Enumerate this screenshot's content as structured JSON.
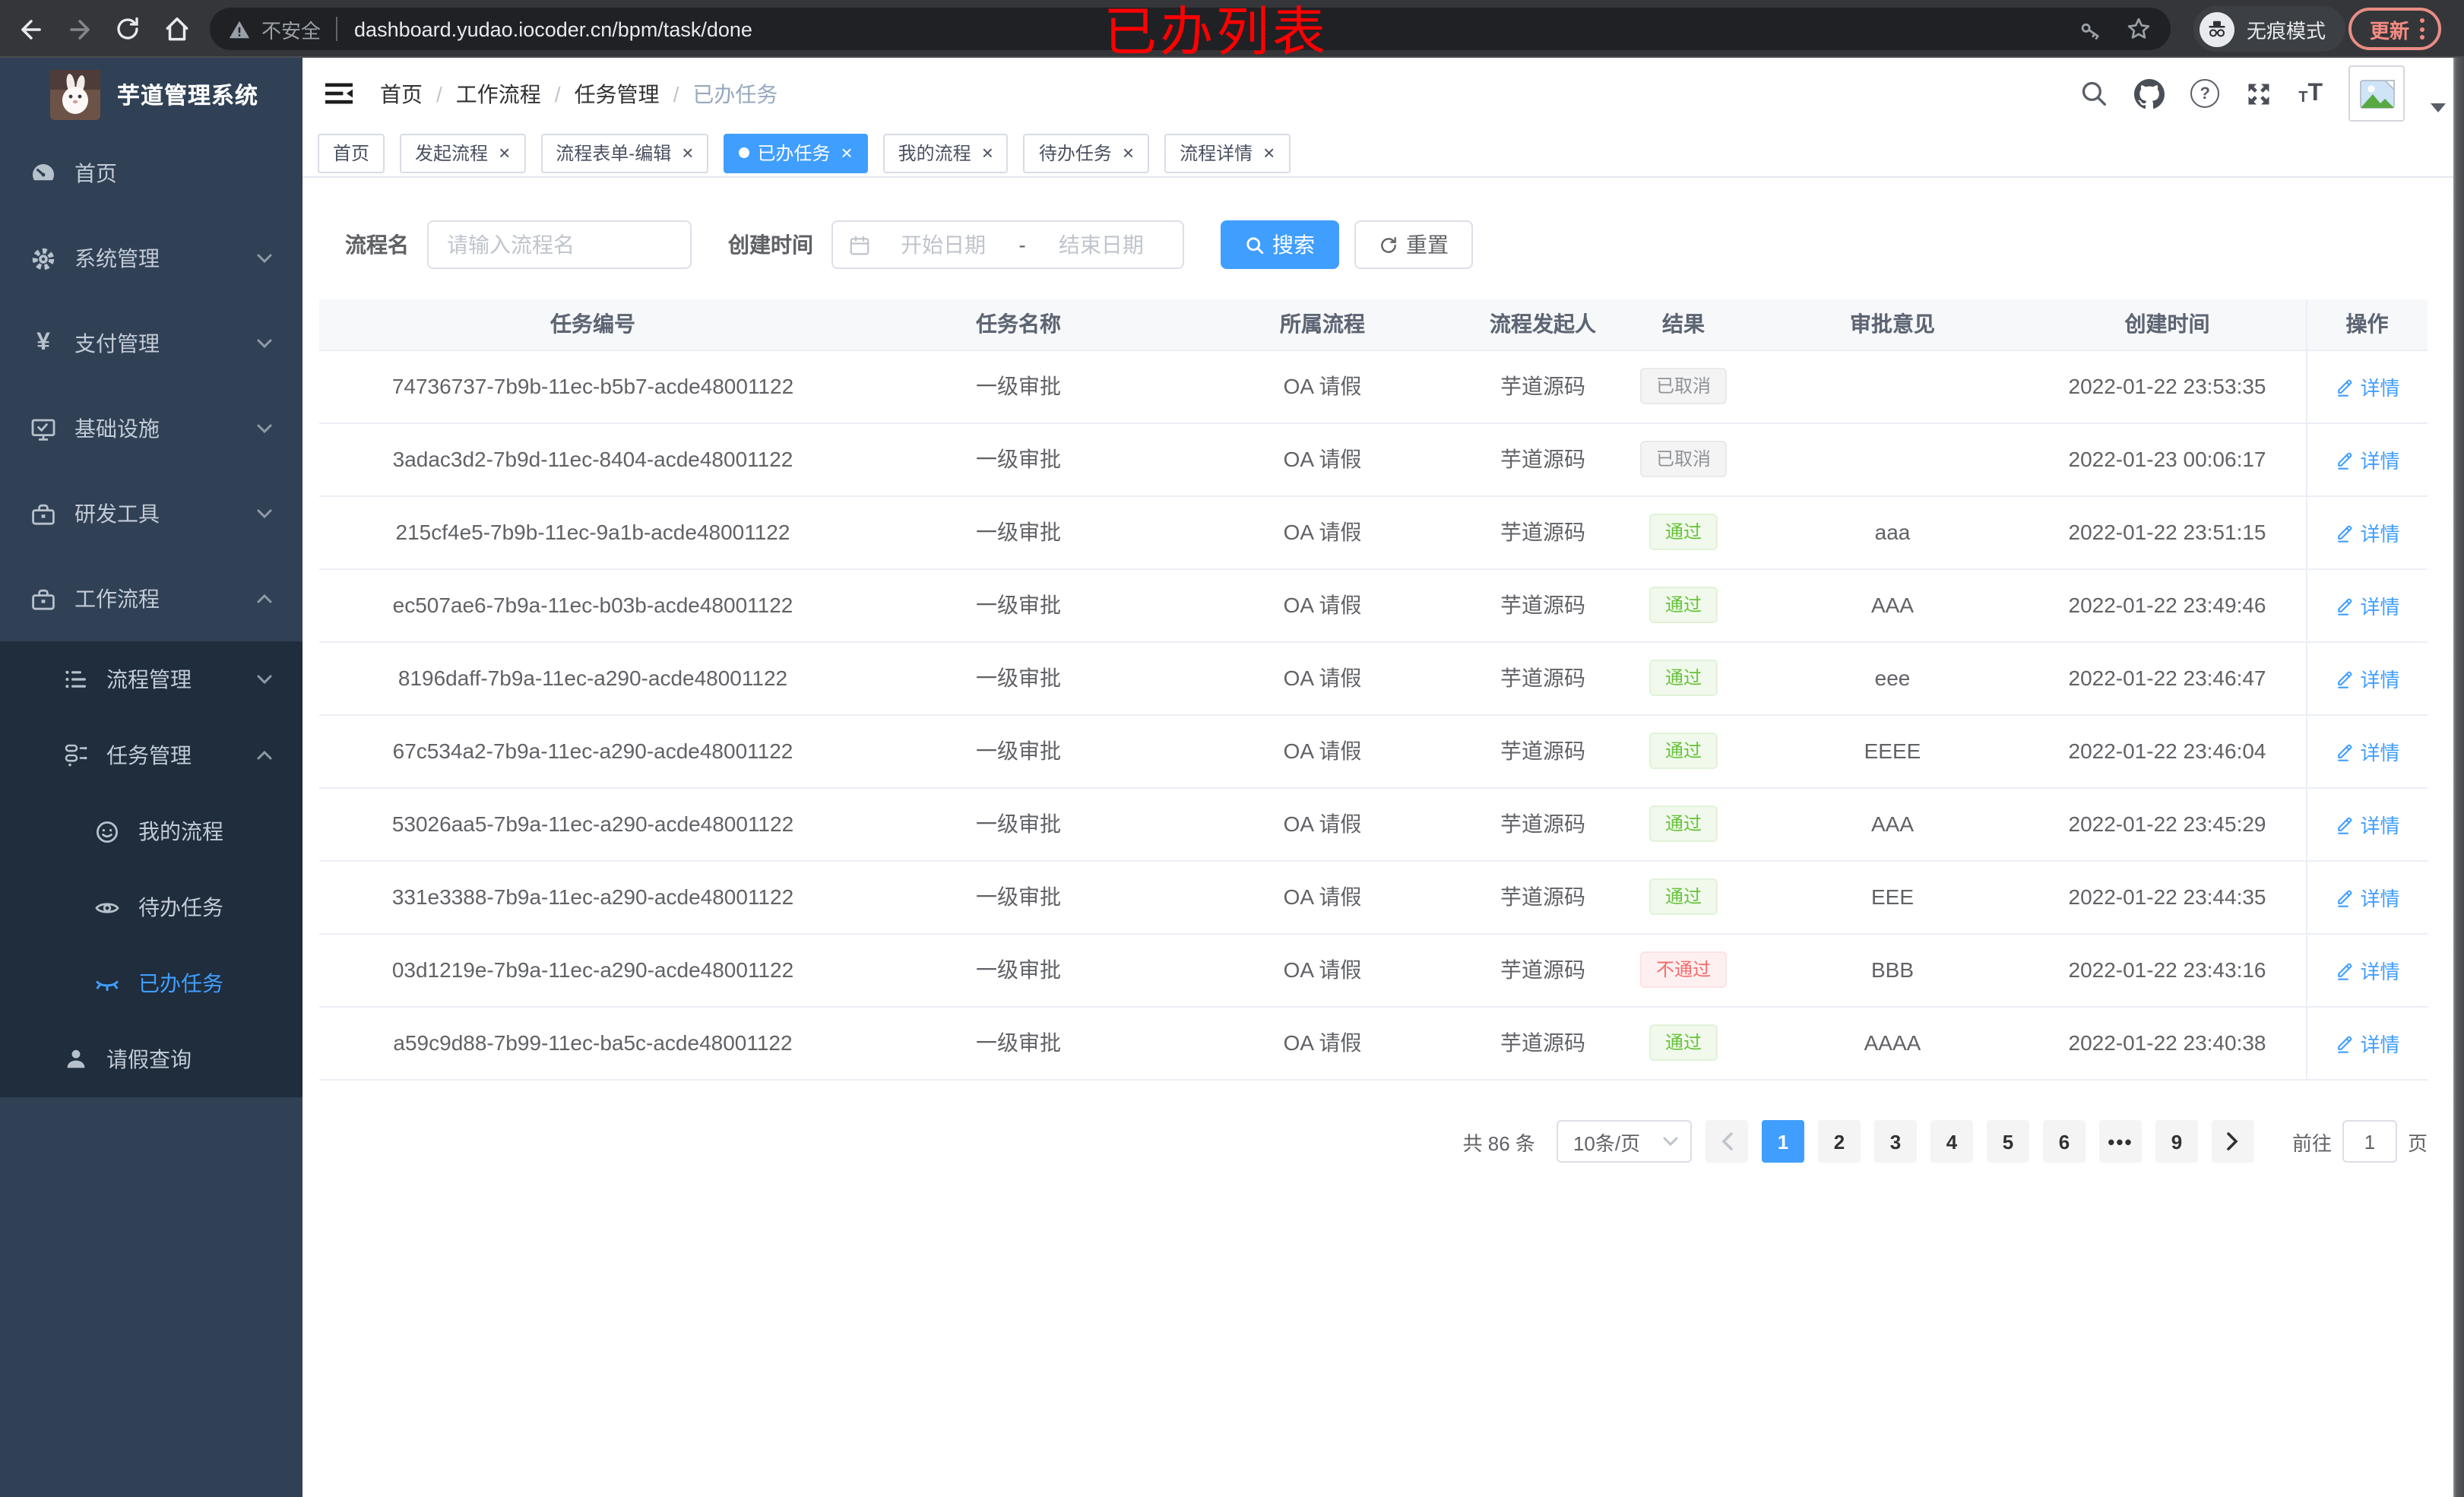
{
  "browser": {
    "security_label": "不安全",
    "url": "dashboard.yudao.iocoder.cn/bpm/task/done",
    "incognito_label": "无痕模式",
    "update_label": "更新"
  },
  "annotation": {
    "text": "已办列表"
  },
  "sidebar": {
    "title": "芋道管理系统",
    "items": [
      {
        "label": "首页"
      },
      {
        "label": "系统管理"
      },
      {
        "label": "支付管理"
      },
      {
        "label": "基础设施"
      },
      {
        "label": "研发工具"
      },
      {
        "label": "工作流程"
      },
      {
        "label": "流程管理"
      },
      {
        "label": "任务管理"
      },
      {
        "label": "我的流程"
      },
      {
        "label": "待办任务"
      },
      {
        "label": "已办任务"
      },
      {
        "label": "请假查询"
      }
    ]
  },
  "breadcrumb": [
    "首页",
    "工作流程",
    "任务管理",
    "已办任务"
  ],
  "tabs": [
    {
      "label": "首页"
    },
    {
      "label": "发起流程"
    },
    {
      "label": "流程表单-编辑"
    },
    {
      "label": "已办任务"
    },
    {
      "label": "我的流程"
    },
    {
      "label": "待办任务"
    },
    {
      "label": "流程详情"
    }
  ],
  "filters": {
    "name_label": "流程名",
    "name_placeholder": "请输入流程名",
    "time_label": "创建时间",
    "start_placeholder": "开始日期",
    "range_separator": "-",
    "end_placeholder": "结束日期",
    "search_label": "搜索",
    "reset_label": "重置"
  },
  "table": {
    "columns": [
      "任务编号",
      "任务名称",
      "所属流程",
      "流程发起人",
      "结果",
      "审批意见",
      "创建时间",
      "操作"
    ],
    "detail_label": "详情",
    "rows": [
      {
        "id": "74736737-7b9b-11ec-b5b7-acde48001122",
        "name": "一级审批",
        "process": "OA 请假",
        "starter": "芋道源码",
        "result": "已取消",
        "result_type": "info",
        "opinion": "",
        "created": "2022-01-22 23:53:35"
      },
      {
        "id": "3adac3d2-7b9d-11ec-8404-acde48001122",
        "name": "一级审批",
        "process": "OA 请假",
        "starter": "芋道源码",
        "result": "已取消",
        "result_type": "info",
        "opinion": "",
        "created": "2022-01-23 00:06:17"
      },
      {
        "id": "215cf4e5-7b9b-11ec-9a1b-acde48001122",
        "name": "一级审批",
        "process": "OA 请假",
        "starter": "芋道源码",
        "result": "通过",
        "result_type": "success",
        "opinion": "aaa",
        "created": "2022-01-22 23:51:15"
      },
      {
        "id": "ec507ae6-7b9a-11ec-b03b-acde48001122",
        "name": "一级审批",
        "process": "OA 请假",
        "starter": "芋道源码",
        "result": "通过",
        "result_type": "success",
        "opinion": "AAA",
        "created": "2022-01-22 23:49:46"
      },
      {
        "id": "8196daff-7b9a-11ec-a290-acde48001122",
        "name": "一级审批",
        "process": "OA 请假",
        "starter": "芋道源码",
        "result": "通过",
        "result_type": "success",
        "opinion": "eee",
        "created": "2022-01-22 23:46:47"
      },
      {
        "id": "67c534a2-7b9a-11ec-a290-acde48001122",
        "name": "一级审批",
        "process": "OA 请假",
        "starter": "芋道源码",
        "result": "通过",
        "result_type": "success",
        "opinion": "EEEE",
        "created": "2022-01-22 23:46:04"
      },
      {
        "id": "53026aa5-7b9a-11ec-a290-acde48001122",
        "name": "一级审批",
        "process": "OA 请假",
        "starter": "芋道源码",
        "result": "通过",
        "result_type": "success",
        "opinion": "AAA",
        "created": "2022-01-22 23:45:29"
      },
      {
        "id": "331e3388-7b9a-11ec-a290-acde48001122",
        "name": "一级审批",
        "process": "OA 请假",
        "starter": "芋道源码",
        "result": "通过",
        "result_type": "success",
        "opinion": "EEE",
        "created": "2022-01-22 23:44:35"
      },
      {
        "id": "03d1219e-7b9a-11ec-a290-acde48001122",
        "name": "一级审批",
        "process": "OA 请假",
        "starter": "芋道源码",
        "result": "不通过",
        "result_type": "danger",
        "opinion": "BBB",
        "created": "2022-01-22 23:43:16"
      },
      {
        "id": "a59c9d88-7b99-11ec-ba5c-acde48001122",
        "name": "一级审批",
        "process": "OA 请假",
        "starter": "芋道源码",
        "result": "通过",
        "result_type": "success",
        "opinion": "AAAA",
        "created": "2022-01-22 23:40:38"
      }
    ]
  },
  "pagination": {
    "total": "共 86 条",
    "page_size": "10条/页",
    "pages": [
      "1",
      "2",
      "3",
      "4",
      "5",
      "6",
      "•••",
      "9"
    ],
    "active_page": "1",
    "goto_label": "前往",
    "goto_value": "1",
    "page_unit": "页"
  },
  "colors": {
    "primary": "#409eff",
    "success": "#67c23a",
    "danger": "#f56c6c",
    "info": "#909399",
    "sidebar": "#304156",
    "submenu": "#1f2d3d"
  }
}
